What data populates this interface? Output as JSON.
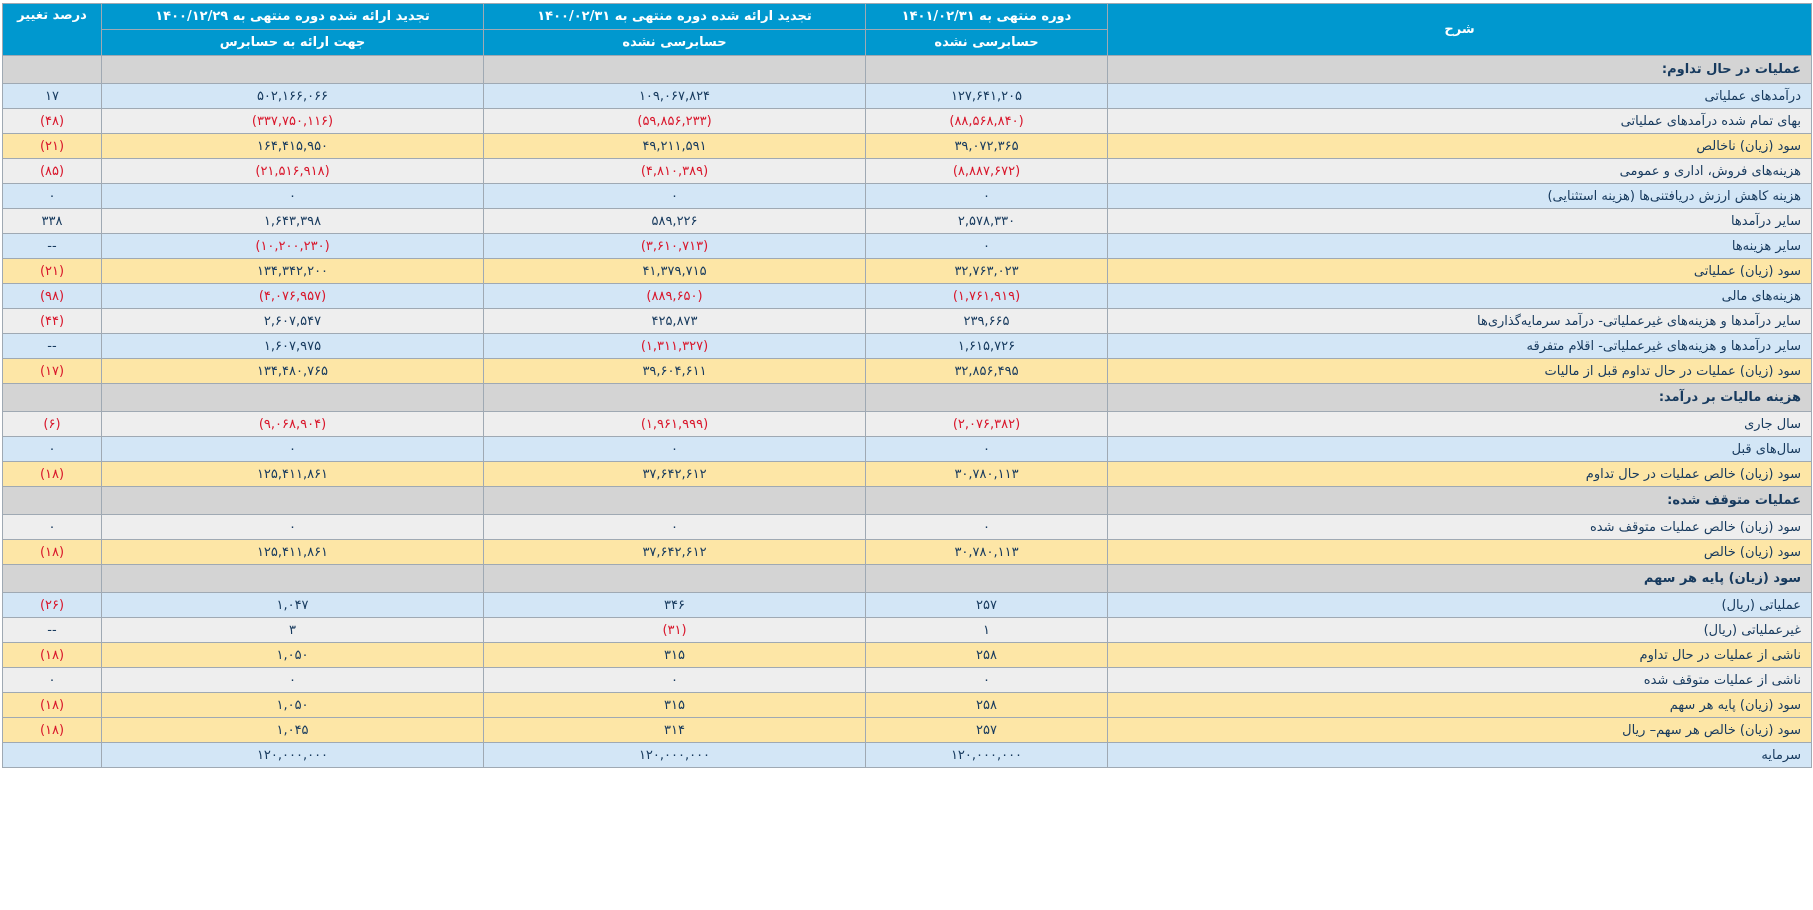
{
  "table": {
    "headers": {
      "description": "شرح",
      "period_current": "دوره منتهی به ۱۴۰۱/۰۲/۳۱",
      "period_current_sub": "حسابرسی نشده",
      "period_prev": "تجدید ارائه شده دوره منتهی به ۱۴۰۰/۰۲/۳۱",
      "period_prev_sub": "حسابرسی نشده",
      "period_year": "تجدید ارائه شده دوره منتهی به ۱۴۰۰/۱۲/۲۹",
      "period_year_sub": "جهت ارائه به حسابرس",
      "change": "درصد تغییر"
    },
    "rows": [
      {
        "type": "section",
        "label": "عملیات در حال تداوم:",
        "c1": "",
        "c2": "",
        "c3": "",
        "pct": ""
      },
      {
        "type": "blue",
        "label": "درآمدهای عملیاتی",
        "c1": "۱۲۷,۶۴۱,۲۰۵",
        "c2": "۱۰۹,۰۶۷,۸۲۴",
        "c3": "۵۰۲,۱۶۶,۰۶۶",
        "pct": "۱۷"
      },
      {
        "type": "grey",
        "label": "بهای تمام شده درآمدهای عملیاتی",
        "c1": "(۸۸,۵۶۸,۸۴۰)",
        "c2": "(۵۹,۸۵۶,۲۳۳)",
        "c3": "(۳۳۷,۷۵۰,۱۱۶)",
        "pct": "(۴۸)"
      },
      {
        "type": "yellow",
        "label": "سود (زیان) ناخالص",
        "c1": "۳۹,۰۷۲,۳۶۵",
        "c2": "۴۹,۲۱۱,۵۹۱",
        "c3": "۱۶۴,۴۱۵,۹۵۰",
        "pct": "(۲۱)"
      },
      {
        "type": "grey",
        "label": "هزینه‌های فروش، اداری و عمومی",
        "c1": "(۸,۸۸۷,۶۷۲)",
        "c2": "(۴,۸۱۰,۳۸۹)",
        "c3": "(۲۱,۵۱۶,۹۱۸)",
        "pct": "(۸۵)"
      },
      {
        "type": "blue",
        "label": "هزینه کاهش ارزش دریافتنی‌ها (هزینه استثنایی)",
        "c1": "۰",
        "c2": "۰",
        "c3": "۰",
        "pct": "۰"
      },
      {
        "type": "grey",
        "label": "سایر درآمدها",
        "c1": "۲,۵۷۸,۳۳۰",
        "c2": "۵۸۹,۲۲۶",
        "c3": "۱,۶۴۳,۳۹۸",
        "pct": "۳۳۸"
      },
      {
        "type": "blue",
        "label": "سایر هزینه‌ها",
        "c1": "۰",
        "c2": "(۳,۶۱۰,۷۱۳)",
        "c3": "(۱۰,۲۰۰,۲۳۰)",
        "pct": "--"
      },
      {
        "type": "yellow",
        "label": "سود (زیان) عملیاتی",
        "c1": "۳۲,۷۶۳,۰۲۳",
        "c2": "۴۱,۳۷۹,۷۱۵",
        "c3": "۱۳۴,۳۴۲,۲۰۰",
        "pct": "(۲۱)"
      },
      {
        "type": "blue",
        "label": "هزینه‌های مالی",
        "c1": "(۱,۷۶۱,۹۱۹)",
        "c2": "(۸۸۹,۶۵۰)",
        "c3": "(۴,۰۷۶,۹۵۷)",
        "pct": "(۹۸)"
      },
      {
        "type": "grey",
        "label": "سایر درآمدها و هزینه‌های غیرعملیاتی- درآمد سرمایه‌گذاری‌ها",
        "c1": "۲۳۹,۶۶۵",
        "c2": "۴۲۵,۸۷۳",
        "c3": "۲,۶۰۷,۵۴۷",
        "pct": "(۴۴)"
      },
      {
        "type": "blue",
        "label": "سایر درآمدها و هزینه‌های غیرعملیاتی- اقلام متفرقه",
        "c1": "۱,۶۱۵,۷۲۶",
        "c2": "(۱,۳۱۱,۳۲۷)",
        "c3": "۱,۶۰۷,۹۷۵",
        "pct": "--"
      },
      {
        "type": "yellow",
        "label": "سود (زیان) عملیات در حال تداوم قبل از مالیات",
        "c1": "۳۲,۸۵۶,۴۹۵",
        "c2": "۳۹,۶۰۴,۶۱۱",
        "c3": "۱۳۴,۴۸۰,۷۶۵",
        "pct": "(۱۷)"
      },
      {
        "type": "section",
        "label": "هزینه مالیات بر درآمد:",
        "c1": "",
        "c2": "",
        "c3": "",
        "pct": ""
      },
      {
        "type": "grey",
        "label": "سال جاری",
        "c1": "(۲,۰۷۶,۳۸۲)",
        "c2": "(۱,۹۶۱,۹۹۹)",
        "c3": "(۹,۰۶۸,۹۰۴)",
        "pct": "(۶)"
      },
      {
        "type": "blue",
        "label": "سال‌های قبل",
        "c1": "۰",
        "c2": "۰",
        "c3": "۰",
        "pct": "۰"
      },
      {
        "type": "yellow",
        "label": "سود (زیان) خالص عملیات در حال تداوم",
        "c1": "۳۰,۷۸۰,۱۱۳",
        "c2": "۳۷,۶۴۲,۶۱۲",
        "c3": "۱۲۵,۴۱۱,۸۶۱",
        "pct": "(۱۸)"
      },
      {
        "type": "section",
        "label": "عملیات متوقف شده:",
        "c1": "",
        "c2": "",
        "c3": "",
        "pct": ""
      },
      {
        "type": "grey",
        "label": "سود (زیان) خالص عملیات متوقف شده",
        "c1": "۰",
        "c2": "۰",
        "c3": "۰",
        "pct": "۰"
      },
      {
        "type": "yellow",
        "label": "سود (زیان) خالص",
        "c1": "۳۰,۷۸۰,۱۱۳",
        "c2": "۳۷,۶۴۲,۶۱۲",
        "c3": "۱۲۵,۴۱۱,۸۶۱",
        "pct": "(۱۸)"
      },
      {
        "type": "section",
        "label": "سود (زیان) پایه هر سهم",
        "c1": "",
        "c2": "",
        "c3": "",
        "pct": ""
      },
      {
        "type": "blue",
        "label": "عملیاتی (ریال)",
        "c1": "۲۵۷",
        "c2": "۳۴۶",
        "c3": "۱,۰۴۷",
        "pct": "(۲۶)"
      },
      {
        "type": "grey",
        "label": "غیرعملیاتی (ریال)",
        "c1": "۱",
        "c2": "(۳۱)",
        "c3": "۳",
        "pct": "--"
      },
      {
        "type": "yellow",
        "label": "ناشی از عملیات در حال تداوم",
        "c1": "۲۵۸",
        "c2": "۳۱۵",
        "c3": "۱,۰۵۰",
        "pct": "(۱۸)"
      },
      {
        "type": "grey",
        "label": "ناشی از عملیات متوقف شده",
        "c1": "۰",
        "c2": "۰",
        "c3": "۰",
        "pct": "۰"
      },
      {
        "type": "yellow",
        "label": "سود (زیان) پایه هر سهم",
        "c1": "۲۵۸",
        "c2": "۳۱۵",
        "c3": "۱,۰۵۰",
        "pct": "(۱۸)"
      },
      {
        "type": "yellow",
        "label": "سود (زیان) خالص هر سهم– ریال",
        "c1": "۲۵۷",
        "c2": "۳۱۴",
        "c3": "۱,۰۴۵",
        "pct": "(۱۸)"
      },
      {
        "type": "blue last",
        "label": "سرمایه",
        "c1": "۱۲۰,۰۰۰,۰۰۰",
        "c2": "۱۲۰,۰۰۰,۰۰۰",
        "c3": "۱۲۰,۰۰۰,۰۰۰",
        "pct": ""
      }
    ]
  }
}
